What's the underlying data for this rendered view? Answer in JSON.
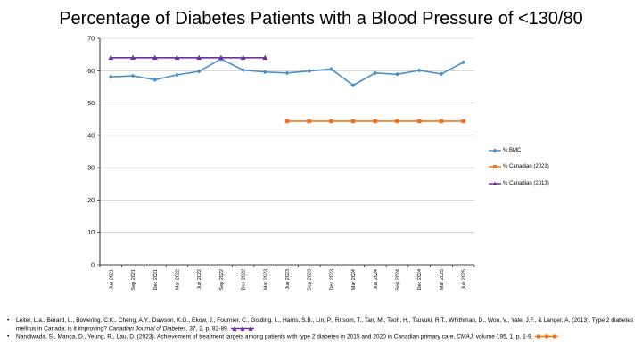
{
  "chart_data": {
    "type": "line",
    "title": "Percentage of Diabetes Patients with a Blood Pressure of <130/80",
    "xlabel": "",
    "ylabel": "",
    "ylim": [
      0,
      70
    ],
    "yticks": [
      0,
      10,
      20,
      30,
      40,
      50,
      60,
      70
    ],
    "categories": [
      "Jun 2021",
      "Sep 2021",
      "Dec 2021",
      "Mar 2022",
      "Jun 2022",
      "Sep 2022",
      "Dec 2022",
      "Mar 2023",
      "Jun 2023",
      "Sep 2023",
      "Dec 2023",
      "Mar 2024",
      "Jun 2024",
      "Sep 2024",
      "Dec 2024",
      "Mar 2025",
      "Jun 2025"
    ],
    "grid": "horizontal",
    "legend_position": "right",
    "series": [
      {
        "name": "% BMC",
        "color": "#4a90c8",
        "marker": "diamond",
        "values": [
          58.1,
          58.4,
          57.2,
          58.7,
          59.8,
          63.6,
          60.2,
          59.6,
          59.3,
          59.9,
          60.5,
          55.5,
          59.3,
          58.9,
          60.1,
          59.0,
          62.6
        ]
      },
      {
        "name": "% Canadian (2023)",
        "color": "#e87722",
        "marker": "square",
        "values": [
          null,
          null,
          null,
          null,
          null,
          null,
          null,
          null,
          44.4,
          44.4,
          44.4,
          44.4,
          44.4,
          44.4,
          44.4,
          44.4,
          44.4
        ]
      },
      {
        "name": "% Canadian (2013)",
        "color": "#7030a0",
        "marker": "triangle",
        "values": [
          64,
          64,
          64,
          64,
          64,
          64,
          64,
          64,
          null,
          null,
          null,
          null,
          null,
          null,
          null,
          null,
          null
        ]
      }
    ]
  },
  "references": [
    {
      "bullet": "•",
      "text_plain": "Leiter, L.a., Berard, L., Bowering, C.K., Cheng, A.Y., Dawson, K.G., Ekow, J., Fournier, C., Golding, L., Harris, S.B., Lin, P., Rnsom, T., Tan, M., Teoh, H., Tsuvuki, R.T., Whithman, D., Woo, V., Yale, J.F., & Langer, A. (2013). Type 2 diabetes mellitus in Canada: is it improving? ",
      "text_italic": "Canadian Journal of Diabetes",
      "text_tail": ", 37, 2, p. 82-89.",
      "marker_color": "#7030a0"
    },
    {
      "bullet": "•",
      "text_plain": "Nandiwada, S., Manca, D., Yeung, R., Lau, D. (2023). Achievement of treatment targets among patients with type 2 diabetes in 2015 and 2020 in Canadian primary care. ",
      "text_italic": "CMAJ",
      "text_tail": ", volume 195, 1, p. 1-9.",
      "marker_color": "#e87722"
    }
  ]
}
